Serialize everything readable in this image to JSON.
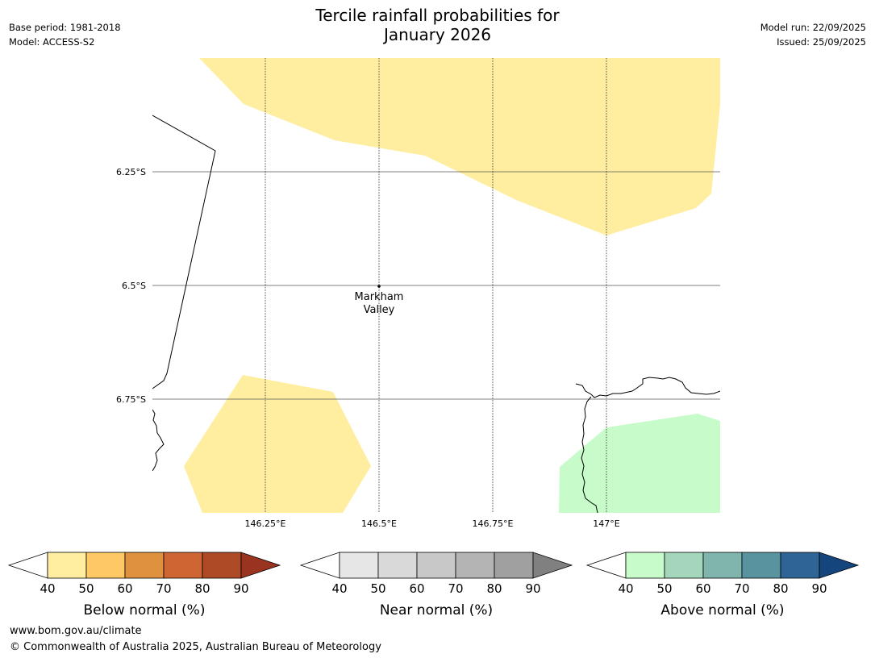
{
  "header": {
    "title_line1": "Tercile rainfall probabilities for",
    "title_line2": "January 2026",
    "base_period": "Base period: 1981-2018",
    "model": "Model: ACCESS-S2",
    "model_run": "Model run: 22/09/2025",
    "issued": "Issued: 25/09/2025"
  },
  "map": {
    "lat_labels": [
      "6.25°S",
      "6.5°S",
      "6.75°S"
    ],
    "lon_labels": [
      "146.25°E",
      "146.5°E",
      "146.75°E",
      "147°E"
    ],
    "place": {
      "name_line1": "Markham",
      "name_line2": "Valley"
    },
    "colors": {
      "below_50": "#ffeda0",
      "above_40": "#c7fcca",
      "gridline": "#555555",
      "coast": "#000000"
    }
  },
  "colorbars": [
    {
      "title": "Below normal (%)",
      "ticks": [
        "40",
        "50",
        "60",
        "70",
        "80",
        "90"
      ],
      "colors": [
        "#ffeda0",
        "#fec965",
        "#e09140",
        "#ce6532",
        "#af4a27",
        "#9a3420"
      ]
    },
    {
      "title": "Near normal (%)",
      "ticks": [
        "40",
        "50",
        "60",
        "70",
        "80",
        "90"
      ],
      "colors": [
        "#e6e6e6",
        "#d9d9d9",
        "#c8c8c8",
        "#b4b4b4",
        "#a0a0a0",
        "#808080"
      ]
    },
    {
      "title": "Above normal (%)",
      "ticks": [
        "40",
        "50",
        "60",
        "70",
        "80",
        "90"
      ],
      "colors": [
        "#c7fcca",
        "#a4d6bb",
        "#7fb5ad",
        "#5a93a0",
        "#2e6496",
        "#14457c"
      ]
    }
  ],
  "footer": {
    "url": "www.bom.gov.au/climate",
    "copyright": "© Commonwealth of Australia 2025, Australian Bureau of Meteorology"
  }
}
